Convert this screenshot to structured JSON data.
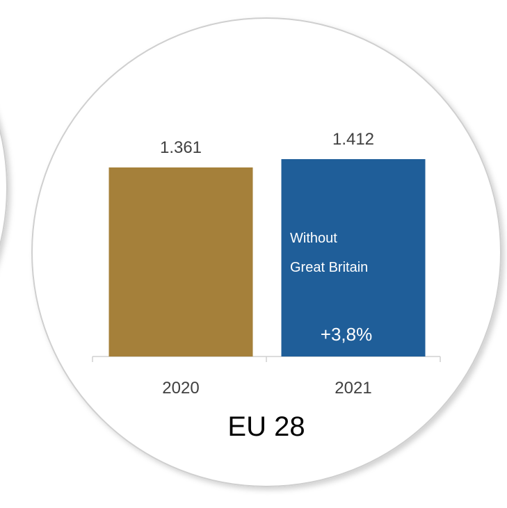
{
  "colors": {
    "bar_2020": "#a5803a",
    "bar_2021": "#1f5e99",
    "axis": "#d0d0d0",
    "text": "#404040",
    "circle_border": "#cfcfcf"
  },
  "chart_data": {
    "type": "bar",
    "categories": [
      "2020",
      "2021"
    ],
    "values": [
      1.361,
      1.412
    ],
    "value_labels": [
      "1.361",
      "1.412"
    ],
    "ylim": [
      0,
      1.412
    ],
    "title": "EU 28",
    "bar_annotation": {
      "category": "2021",
      "line1": "Without",
      "line2": "Great Britain",
      "change": "+3,8%"
    },
    "grid": false
  }
}
